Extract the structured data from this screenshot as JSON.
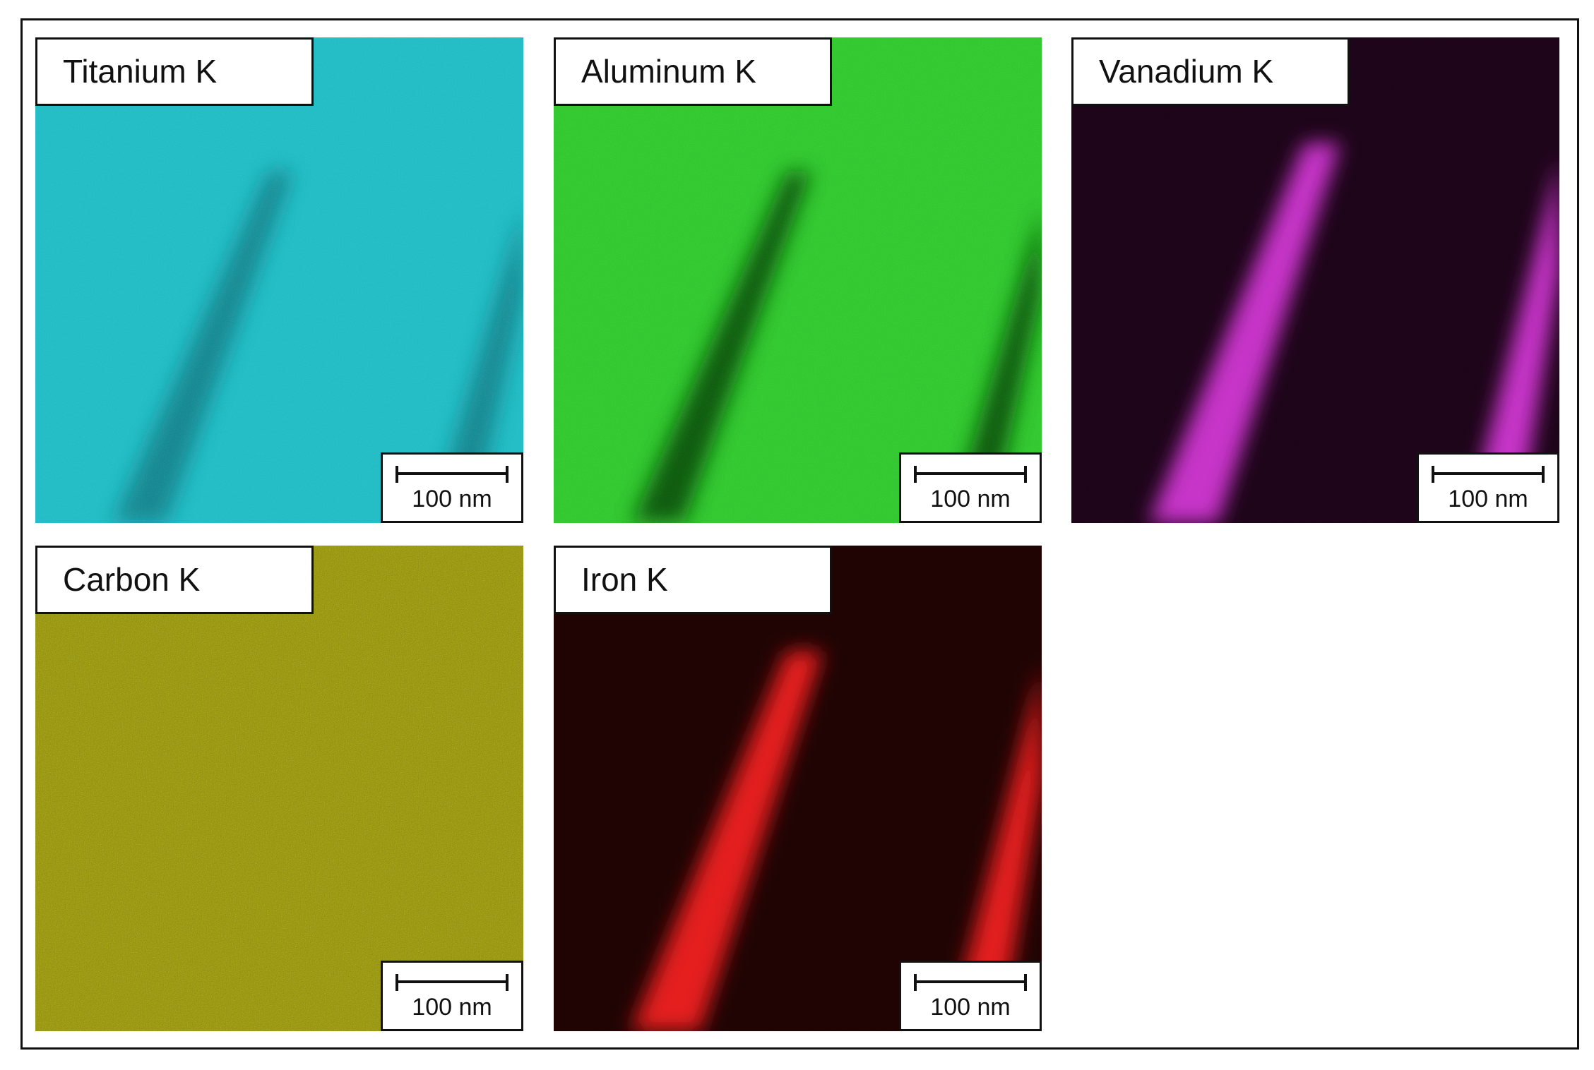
{
  "panels": [
    {
      "label": "Titanium K",
      "scale_bar": "100 nm"
    },
    {
      "label": "Aluminum K",
      "scale_bar": "100 nm"
    },
    {
      "label": "Vanadium K",
      "scale_bar": "100 nm"
    },
    {
      "label": "Carbon K",
      "scale_bar": "100 nm"
    },
    {
      "label": "Iron K",
      "scale_bar": "100 nm"
    }
  ]
}
